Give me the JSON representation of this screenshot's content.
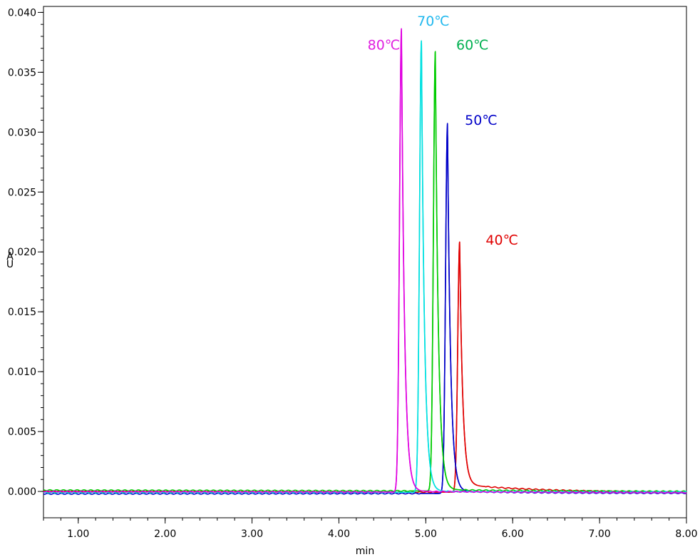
{
  "chart_data": {
    "type": "line",
    "title": "",
    "xlabel": "min",
    "ylabel": "AU",
    "xlim": [
      0.6,
      8.0
    ],
    "ylim": [
      -0.0022,
      0.0405
    ],
    "x_ticks": [
      1.0,
      2.0,
      3.0,
      4.0,
      5.0,
      6.0,
      7.0,
      8.0
    ],
    "x_tick_labels": [
      "1.00",
      "2.00",
      "3.00",
      "4.00",
      "5.00",
      "6.00",
      "7.00",
      "8.00"
    ],
    "y_ticks": [
      0.0,
      0.005,
      0.01,
      0.015,
      0.02,
      0.025,
      0.03,
      0.035,
      0.04
    ],
    "y_tick_labels": [
      "0.000",
      "0.005",
      "0.010",
      "0.015",
      "0.020",
      "0.025",
      "0.030",
      "0.035",
      "0.040"
    ],
    "grid": false,
    "legend": "none",
    "series": [
      {
        "name": "40℃",
        "color": "#e00000",
        "peak_x": 5.39,
        "peak_y": 0.0209,
        "tail": 0.00065,
        "baseline": 0.0
      },
      {
        "name": "50℃",
        "color": "#0000c8",
        "peak_x": 5.25,
        "peak_y": 0.0309,
        "tail": 0.0002,
        "baseline": -0.0002
      },
      {
        "name": "60℃",
        "color": "#00cc00",
        "peak_x": 5.11,
        "peak_y": 0.0367,
        "tail": 0.00012,
        "baseline": 0.0001
      },
      {
        "name": "70℃",
        "color": "#00e0e0",
        "peak_x": 4.95,
        "peak_y": 0.0377,
        "tail": 0.0001,
        "baseline": -0.0001
      },
      {
        "name": "80℃",
        "color": "#e000e0",
        "peak_x": 4.72,
        "peak_y": 0.0387,
        "tail": 8e-05,
        "baseline": 0.0
      }
    ],
    "annotations": [
      {
        "text": "80℃",
        "color": "#e020e0",
        "x": 4.33,
        "y": 0.0369
      },
      {
        "text": "70℃",
        "color": "#20b8ee",
        "x": 4.9,
        "y": 0.0389
      },
      {
        "text": "60℃",
        "color": "#00b050",
        "x": 5.35,
        "y": 0.0369
      },
      {
        "text": "50℃",
        "color": "#0000c8",
        "x": 5.45,
        "y": 0.0306
      },
      {
        "text": "40℃",
        "color": "#e00000",
        "x": 5.69,
        "y": 0.0206
      }
    ]
  }
}
